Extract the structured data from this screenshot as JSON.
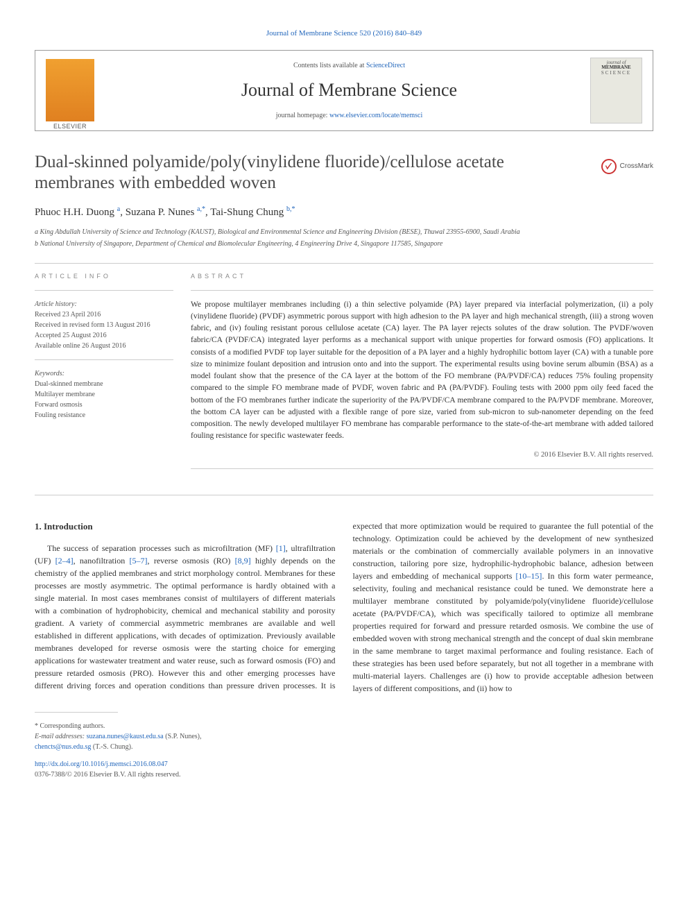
{
  "citation": {
    "journal_link": "Journal of Membrane Science",
    "vol_pages": "520 (2016) 840–849"
  },
  "masthead": {
    "contents_prefix": "Contents lists available at ",
    "contents_link": "ScienceDirect",
    "journal_title": "Journal of Membrane Science",
    "homepage_prefix": "journal homepage: ",
    "homepage_link": "www.elsevier.com/locate/memsci",
    "publisher_name": "ELSEVIER",
    "cover": {
      "line1": "journal of",
      "line2": "MEMBRANE",
      "line3": "SCIENCE"
    }
  },
  "crossmark_label": "CrossMark",
  "article": {
    "title": "Dual-skinned polyamide/poly(vinylidene fluoride)/cellulose acetate membranes with embedded woven",
    "authors_html": "Phuoc H.H. Duong <sup>a</sup>, Suzana P. Nunes <sup>a,*</sup>, Tai-Shung Chung <sup>b,*</sup>",
    "affiliations": [
      "a King Abdullah University of Science and Technology (KAUST), Biological and Environmental Science and Engineering Division (BESE), Thuwal 23955-6900, Saudi Arabia",
      "b National University of Singapore, Department of Chemical and Biomolecular Engineering, 4 Engineering Drive 4, Singapore 117585, Singapore"
    ]
  },
  "article_info": {
    "label": "ARTICLE INFO",
    "history_label": "Article history:",
    "history": [
      "Received 23 April 2016",
      "Received in revised form 13 August 2016",
      "Accepted 25 August 2016",
      "Available online 26 August 2016"
    ],
    "keywords_label": "Keywords:",
    "keywords": [
      "Dual-skinned membrane",
      "Multilayer membrane",
      "Forward osmosis",
      "Fouling resistance"
    ]
  },
  "abstract": {
    "label": "ABSTRACT",
    "text": "We propose multilayer membranes including (i) a thin selective polyamide (PA) layer prepared via interfacial polymerization, (ii) a poly (vinylidene fluoride) (PVDF) asymmetric porous support with high adhesion to the PA layer and high mechanical strength, (iii) a strong woven fabric, and (iv) fouling resistant porous cellulose acetate (CA) layer. The PA layer rejects solutes of the draw solution. The PVDF/woven fabric/CA (PVDF/CA) integrated layer performs as a mechanical support with unique properties for forward osmosis (FO) applications. It consists of a modified PVDF top layer suitable for the deposition of a PA layer and a highly hydrophilic bottom layer (CA) with a tunable pore size to minimize foulant deposition and intrusion onto and into the support. The experimental results using bovine serum albumin (BSA) as a model foulant show that the presence of the CA layer at the bottom of the FO membrane (PA/PVDF/CA) reduces 75% fouling propensity compared to the simple FO membrane made of PVDF, woven fabric and PA (PA/PVDF). Fouling tests with 2000 ppm oily feed faced the bottom of the FO membranes further indicate the superiority of the PA/PVDF/CA membrane compared to the PA/PVDF membrane. Moreover, the bottom CA layer can be adjusted with a flexible range of pore size, varied from sub-micron to sub-nanometer depending on the feed composition. The newly developed multilayer FO membrane has comparable performance to the state-of-the-art membrane with added tailored fouling resistance for specific wastewater feeds.",
    "copyright": "© 2016 Elsevier B.V. All rights reserved."
  },
  "introduction": {
    "heading": "1. Introduction",
    "col1_p1_a": "The success of separation processes such as microfiltration (MF) ",
    "ref1": "[1]",
    "col1_p1_b": ", ultrafiltration (UF) ",
    "ref2": "[2–4]",
    "col1_p1_c": ", nanofiltration ",
    "ref3": "[5–7]",
    "col1_p1_d": ", reverse osmosis (RO) ",
    "ref4": "[8,9]",
    "col1_p1_e": " highly depends on the chemistry of the applied membranes and strict morphology control. Membranes for these processes are mostly asymmetric. The optimal performance is hardly obtained with a single material. In most cases membranes consist of multilayers of different materials with a combination of hydrophobicity, chemical and mechanical stability and porosity gradient. A variety of commercial asymmetric membranes are available and well established in different applications, with decades of optimization. Previously available membranes developed for reverse osmosis were the starting choice for emerging applications for wastewater treatment and water reuse, such as forward osmosis (FO) and pressure retarded osmosis (PRO). However this",
    "col2_p1_a": "and other emerging processes have different driving forces and operation conditions than pressure driven processes. It is expected that more optimization would be required to guarantee the full potential of the technology. Optimization could be achieved by the development of new synthesized materials or the combination of commercially available polymers in an innovative construction, tailoring pore size, hydrophilic-hydrophobic balance, adhesion between layers and embedding of mechanical supports ",
    "ref5": "[10–15]",
    "col2_p1_b": ". In this form water permeance, selectivity, fouling and mechanical resistance could be tuned. We demonstrate here a multilayer membrane constituted by polyamide/poly(vinylidene fluoride)/cellulose acetate (PA/PVDF/CA), which was specifically tailored to optimize all membrane properties required for forward and pressure retarded osmosis. We combine the use of embedded woven with strong mechanical strength and the concept of dual skin membrane in the same membrane to target maximal performance and fouling resistance. Each of these strategies has been used before separately, but not all together in a membrane with multi-material layers. Challenges are (i) how to provide acceptable adhesion between layers of different compositions, and (ii) how to"
  },
  "footer": {
    "corresponding": "* Corresponding authors.",
    "email_label": "E-mail addresses: ",
    "email1": "suzana.nunes@kaust.edu.sa",
    "email1_name": " (S.P. Nunes),",
    "email2": "chencts@nus.edu.sg",
    "email2_name": " (T.-S. Chung).",
    "doi": "http://dx.doi.org/10.1016/j.memsci.2016.08.047",
    "issn_copyright": "0376-7388/© 2016 Elsevier B.V. All rights reserved."
  },
  "colors": {
    "link": "#2266bb",
    "text": "#333333",
    "muted": "#555555",
    "border": "#cccccc",
    "elsevier_orange": "#e08020",
    "crossmark_red": "#cc3333"
  },
  "typography": {
    "body_pt": 12,
    "title_pt": 25,
    "journal_pt": 26,
    "abstract_pt": 11.5,
    "small_pt": 10,
    "section_label_pt": 9
  }
}
